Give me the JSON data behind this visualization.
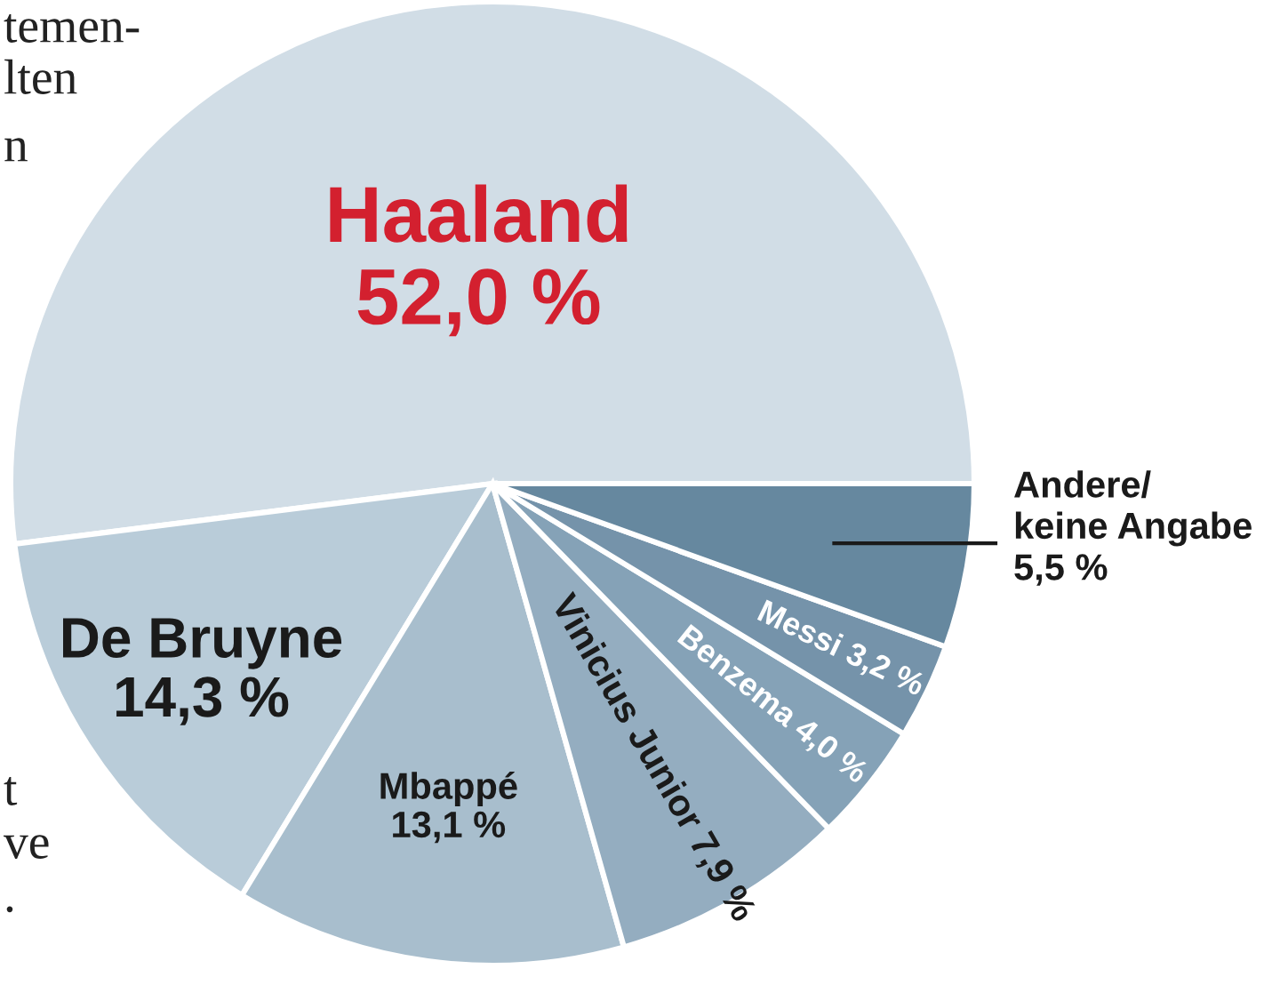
{
  "chart_data": {
    "type": "pie",
    "categories": [
      "Haaland",
      "De Bruyne",
      "Mbappé",
      "Vinicius Junior",
      "Benzema",
      "Messi",
      "Andere/\nkeine Angabe"
    ],
    "values": [
      52.0,
      14.3,
      13.1,
      7.9,
      4.0,
      3.2,
      5.5
    ],
    "value_labels": [
      "52,0 %",
      "14,3 %",
      "13,1 %",
      "7,9 %",
      "4,0 %",
      "3,2 %",
      "5,5 %"
    ],
    "colors": [
      "#d1dde6",
      "#b9ccd9",
      "#a8becd",
      "#94adc0",
      "#85a2b7",
      "#7593aa",
      "#66889f"
    ],
    "annotations": [
      "temen-",
      "lten",
      "n",
      "t",
      "ve",
      "."
    ]
  }
}
